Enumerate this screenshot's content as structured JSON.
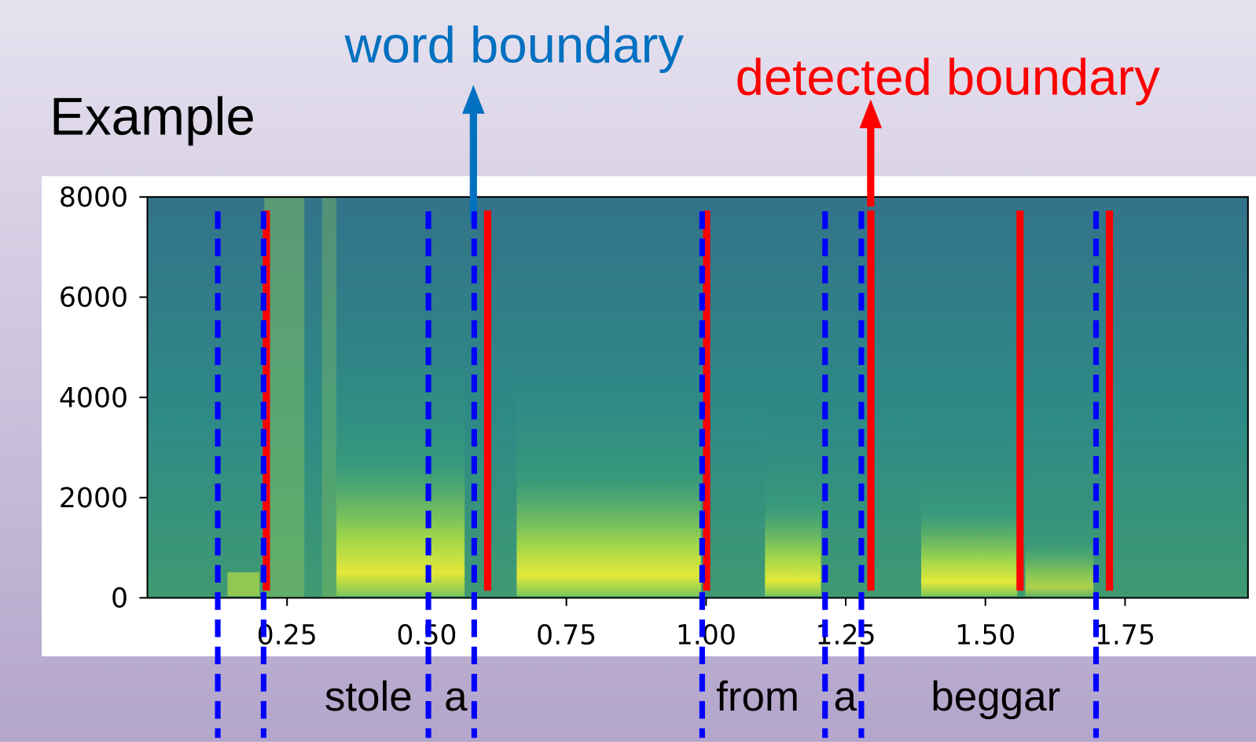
{
  "title": "Example",
  "chart_data": {
    "type": "spectrogram",
    "annotations": {
      "word_boundary": "word boundary",
      "detected_boundary": "detected boundary"
    },
    "xlim": [
      0,
      1.97
    ],
    "ylim": [
      0,
      8000
    ],
    "xticks": [
      0.25,
      {
        "value": 0.5,
        "label": "0.50"
      },
      0.75,
      {
        "value": 1,
        "label": "1.00"
      },
      1.25,
      {
        "value": 1.5,
        "label": "1.50"
      },
      1.75
    ],
    "yticks": [
      0,
      2000,
      4000,
      6000,
      8000
    ],
    "word_boundaries": [
      0.126,
      0.208,
      0.503,
      0.585,
      0.993,
      1.213,
      1.278,
      1.698
    ],
    "word_boundary_color": "#0000ff",
    "detected_boundaries": [
      0.213,
      0.609,
      1.001,
      1.295,
      1.562,
      1.722
    ],
    "detected_boundary_color": "#ff0000",
    "words": [
      "stole",
      "a",
      "from",
      "a",
      "beggar"
    ]
  }
}
